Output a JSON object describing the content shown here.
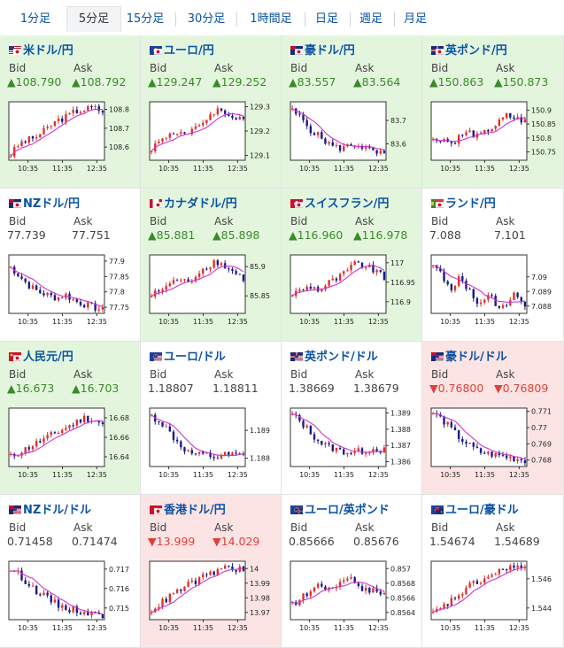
{
  "tabs": [
    "1分足",
    "5分足",
    "15分足",
    "30分足",
    "1時間足",
    "日足",
    "週足",
    "月足"
  ],
  "active_tab": 1,
  "labels": {
    "bid": "Bid",
    "ask": "Ask"
  },
  "colors": {
    "up_bg": "#e3f6dd",
    "down_bg": "#fde4e4",
    "up_text": "#3a8a2a",
    "down_text": "#e0403a",
    "candle_up": "#e0302a",
    "candle_down": "#1a1a8a",
    "ma": "#cc33cc",
    "link": "#0a52a3"
  },
  "pairs": [
    {
      "name": "米ドル/円",
      "flags": [
        "us",
        "jp"
      ],
      "trend": "up",
      "bid": "108.790",
      "ask": "108.792",
      "chart_data": {
        "type": "candlestick",
        "x_ticks": [
          "10:35",
          "11:35",
          "12:35"
        ],
        "y_ticks": [
          "108.8",
          "108.7",
          "108.6"
        ],
        "ylim": [
          108.53,
          108.84
        ],
        "series": [
          108.56,
          108.62,
          108.64,
          108.66,
          108.7,
          108.74,
          108.76,
          108.79,
          108.8,
          108.81,
          108.79
        ]
      }
    },
    {
      "name": "ユーロ/円",
      "flags": [
        "eu",
        "jp"
      ],
      "trend": "up",
      "bid": "129.247",
      "ask": "129.252",
      "chart_data": {
        "type": "candlestick",
        "x_ticks": [
          "10:35",
          "11:35",
          "12:35"
        ],
        "y_ticks": [
          "129.3",
          "129.2",
          "129.1"
        ],
        "ylim": [
          129.08,
          129.32
        ],
        "series": [
          129.13,
          129.16,
          129.19,
          129.2,
          129.18,
          129.22,
          129.25,
          129.29,
          129.27,
          129.26,
          129.25
        ]
      }
    },
    {
      "name": "豪ドル/円",
      "flags": [
        "au",
        "jp"
      ],
      "trend": "up",
      "bid": "83.557",
      "ask": "83.564",
      "chart_data": {
        "type": "candlestick",
        "x_ticks": [
          "10:35",
          "11:35",
          "12:35"
        ],
        "y_ticks": [
          "83.7",
          "83.6"
        ],
        "ylim": [
          83.53,
          83.78
        ],
        "series": [
          83.74,
          83.71,
          83.66,
          83.63,
          83.6,
          83.58,
          83.59,
          83.6,
          83.58,
          83.56,
          83.557
        ]
      }
    },
    {
      "name": "英ポンド/円",
      "flags": [
        "gb",
        "jp"
      ],
      "trend": "up",
      "bid": "150.863",
      "ask": "150.873",
      "chart_data": {
        "type": "candlestick",
        "x_ticks": [
          "10:35",
          "11:35",
          "12:35"
        ],
        "y_ticks": [
          "150.9",
          "150.85",
          "150.8",
          "150.75"
        ],
        "ylim": [
          150.72,
          150.93
        ],
        "series": [
          150.79,
          150.8,
          150.78,
          150.81,
          150.82,
          150.8,
          150.83,
          150.85,
          150.88,
          150.87,
          150.86
        ]
      }
    },
    {
      "name": "NZドル/円",
      "flags": [
        "nz",
        "jp"
      ],
      "trend": "none",
      "bid": "77.739",
      "ask": "77.751",
      "chart_data": {
        "type": "candlestick",
        "x_ticks": [
          "10:35",
          "11:35",
          "12:35"
        ],
        "y_ticks": [
          "77.9",
          "77.85",
          "77.8",
          "77.75"
        ],
        "ylim": [
          77.73,
          77.92
        ],
        "series": [
          77.88,
          77.85,
          77.82,
          77.8,
          77.79,
          77.78,
          77.79,
          77.77,
          77.76,
          77.75,
          77.74
        ]
      }
    },
    {
      "name": "カナダドル/円",
      "flags": [
        "ca",
        "jp"
      ],
      "trend": "up",
      "bid": "85.881",
      "ask": "85.898",
      "chart_data": {
        "type": "candlestick",
        "x_ticks": [
          "10:35",
          "11:35",
          "12:35"
        ],
        "y_ticks": [
          "85.9",
          "85.85"
        ],
        "ylim": [
          85.82,
          85.92
        ],
        "series": [
          85.85,
          85.86,
          85.87,
          85.88,
          85.87,
          85.89,
          85.9,
          85.91,
          85.9,
          85.89,
          85.88
        ]
      }
    },
    {
      "name": "スイスフラン/円",
      "flags": [
        "ch",
        "jp"
      ],
      "trend": "up",
      "bid": "116.960",
      "ask": "116.978",
      "chart_data": {
        "type": "candlestick",
        "x_ticks": [
          "10:35",
          "11:35",
          "12:35"
        ],
        "y_ticks": [
          "117",
          "116.95",
          "116.9"
        ],
        "ylim": [
          116.87,
          117.02
        ],
        "series": [
          116.92,
          116.93,
          116.94,
          116.93,
          116.95,
          116.96,
          116.98,
          117.0,
          116.99,
          116.98,
          116.96
        ]
      }
    },
    {
      "name": "ランド/円",
      "flags": [
        "za",
        "jp"
      ],
      "trend": "none",
      "bid": "7.088",
      "ask": "7.101",
      "chart_data": {
        "type": "candlestick",
        "x_ticks": [
          "10:35",
          "11:35",
          "12:35"
        ],
        "y_ticks": [
          "7.09",
          "7.089",
          "7.088"
        ],
        "ylim": [
          7.0875,
          7.0915
        ],
        "series": [
          7.091,
          7.09,
          7.089,
          7.09,
          7.089,
          7.088,
          7.089,
          7.088,
          7.088,
          7.089,
          7.088
        ]
      }
    },
    {
      "name": "人民元/円",
      "flags": [
        "cn",
        "jp"
      ],
      "trend": "up",
      "bid": "16.673",
      "ask": "16.703",
      "chart_data": {
        "type": "candlestick",
        "x_ticks": [
          "10:35",
          "11:35",
          "12:35"
        ],
        "y_ticks": [
          "16.68",
          "16.66",
          "16.64"
        ],
        "ylim": [
          16.63,
          16.69
        ],
        "series": [
          16.64,
          16.645,
          16.65,
          16.655,
          16.66,
          16.665,
          16.67,
          16.675,
          16.68,
          16.678,
          16.673
        ]
      }
    },
    {
      "name": "ユーロ/ドル",
      "flags": [
        "eu",
        "us"
      ],
      "trend": "none",
      "bid": "1.18807",
      "ask": "1.18811",
      "chart_data": {
        "type": "candlestick",
        "x_ticks": [
          "10:35",
          "11:35",
          "12:35"
        ],
        "y_ticks": [
          "1.189",
          "1.188"
        ],
        "ylim": [
          1.1877,
          1.1898
        ],
        "series": [
          1.1895,
          1.1893,
          1.1889,
          1.1885,
          1.1882,
          1.1881,
          1.1881,
          1.188,
          1.1881,
          1.1881,
          1.18807
        ]
      }
    },
    {
      "name": "英ポンド/ドル",
      "flags": [
        "gb",
        "us"
      ],
      "trend": "none",
      "bid": "1.38669",
      "ask": "1.38679",
      "chart_data": {
        "type": "candlestick",
        "x_ticks": [
          "10:35",
          "11:35",
          "12:35"
        ],
        "y_ticks": [
          "1.389",
          "1.388",
          "1.387",
          "1.386"
        ],
        "ylim": [
          1.3857,
          1.3893
        ],
        "series": [
          1.3889,
          1.3884,
          1.3878,
          1.3872,
          1.3869,
          1.3867,
          1.3866,
          1.3866,
          1.3867,
          1.3868,
          1.38669
        ]
      }
    },
    {
      "name": "豪ドル/ドル",
      "flags": [
        "au",
        "us"
      ],
      "trend": "down",
      "bid": "0.76800",
      "ask": "0.76809",
      "chart_data": {
        "type": "candlestick",
        "x_ticks": [
          "10:35",
          "11:35",
          "12:35"
        ],
        "y_ticks": [
          "0.771",
          "0.77",
          "0.769",
          "0.768"
        ],
        "ylim": [
          0.7676,
          0.7712
        ],
        "series": [
          0.7709,
          0.7705,
          0.7699,
          0.7693,
          0.7689,
          0.7685,
          0.7684,
          0.7683,
          0.7682,
          0.7681,
          0.768
        ]
      }
    },
    {
      "name": "NZドル/ドル",
      "flags": [
        "nz",
        "us"
      ],
      "trend": "none",
      "bid": "0.71458",
      "ask": "0.71474",
      "chart_data": {
        "type": "candlestick",
        "x_ticks": [
          "10:35",
          "11:35",
          "12:35"
        ],
        "y_ticks": [
          "0.717",
          "0.716",
          "0.715"
        ],
        "ylim": [
          0.7144,
          0.7174
        ],
        "series": [
          0.717,
          0.7167,
          0.7162,
          0.7158,
          0.7155,
          0.7152,
          0.715,
          0.7149,
          0.7148,
          0.7147,
          0.71458
        ]
      }
    },
    {
      "name": "香港ドル/円",
      "flags": [
        "hk",
        "jp"
      ],
      "trend": "down",
      "bid": "13.999",
      "ask": "14.029",
      "chart_data": {
        "type": "candlestick",
        "x_ticks": [
          "10:35",
          "11:35",
          "12:35"
        ],
        "y_ticks": [
          "14",
          "13.99",
          "13.98",
          "13.97"
        ],
        "ylim": [
          13.965,
          14.005
        ],
        "series": [
          13.972,
          13.976,
          13.981,
          13.985,
          13.989,
          13.992,
          13.995,
          13.998,
          14.001,
          14.0,
          13.999
        ]
      }
    },
    {
      "name": "ユーロ/英ポンド",
      "flags": [
        "eu",
        "gb"
      ],
      "trend": "none",
      "bid": "0.85666",
      "ask": "0.85676",
      "chart_data": {
        "type": "candlestick",
        "x_ticks": [
          "10:35",
          "11:35",
          "12:35"
        ],
        "y_ticks": [
          "0.857",
          "0.8568",
          "0.8566",
          "0.8564"
        ],
        "ylim": [
          0.8563,
          0.8571
        ],
        "series": [
          0.8565,
          0.8566,
          0.8567,
          0.8568,
          0.8567,
          0.8568,
          0.8569,
          0.8568,
          0.8567,
          0.8567,
          0.85666
        ]
      }
    },
    {
      "name": "ユーロ/豪ドル",
      "flags": [
        "eu",
        "au"
      ],
      "trend": "none",
      "bid": "1.54674",
      "ask": "1.54689",
      "chart_data": {
        "type": "candlestick",
        "x_ticks": [
          "10:35",
          "11:35",
          "12:35"
        ],
        "y_ticks": [
          "1.546",
          "1.544"
        ],
        "ylim": [
          1.5432,
          1.5472
        ],
        "series": [
          1.5436,
          1.544,
          1.5445,
          1.545,
          1.5455,
          1.5458,
          1.5461,
          1.5464,
          1.5468,
          1.5468,
          1.54674
        ]
      }
    }
  ]
}
